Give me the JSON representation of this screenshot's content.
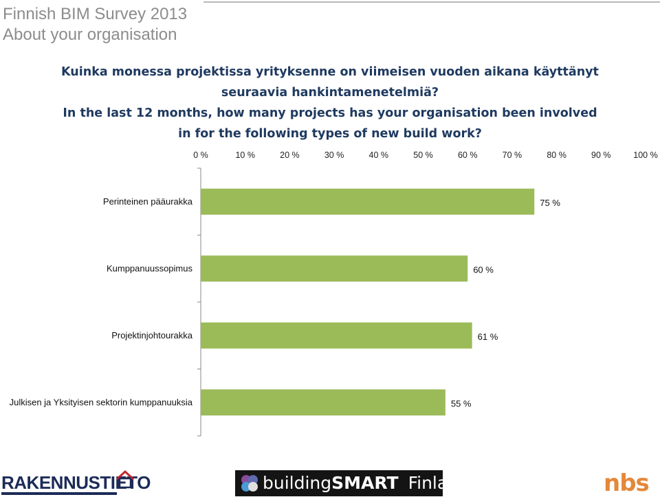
{
  "slide": {
    "title_line1": "Finnish BIM Survey 2013",
    "title_line2": "About your organisation"
  },
  "question": {
    "fi_line1": "Kuinka monessa projektissa yrityksenne on viimeisen vuoden aikana käyttänyt",
    "fi_line2": "seuraavia hankintamenetelmiä?",
    "en_line1": "In the last 12 months, how many projects has your organisation been involved",
    "en_line2": "in for the following types of new build work?"
  },
  "chart_data": {
    "type": "bar",
    "orientation": "horizontal",
    "categories": [
      "Perinteinen pääurakka",
      "Kumppanuussopimus",
      "Projektinjohtourakka",
      "Julkisen ja Yksityisen sektorin kumppanuuksia"
    ],
    "values": [
      75,
      60,
      61,
      55
    ],
    "data_labels": [
      "75 %",
      "60 %",
      "61 %",
      "55 %"
    ],
    "x_ticks": [
      "0 %",
      "10 %",
      "20 %",
      "30 %",
      "40 %",
      "50 %",
      "60 %",
      "70 %",
      "80 %",
      "90 %",
      "100 %"
    ],
    "xlim": [
      0,
      100
    ],
    "x_axis_position": "top",
    "grid": false,
    "legend": "none",
    "bar_color": "#9bbb59"
  },
  "footer": {
    "logo_left": "RAKENNUSTIETO",
    "logo_center_part1": "building",
    "logo_center_part2": "SMART",
    "logo_center_part3": "Finland",
    "logo_right": "nbs"
  }
}
